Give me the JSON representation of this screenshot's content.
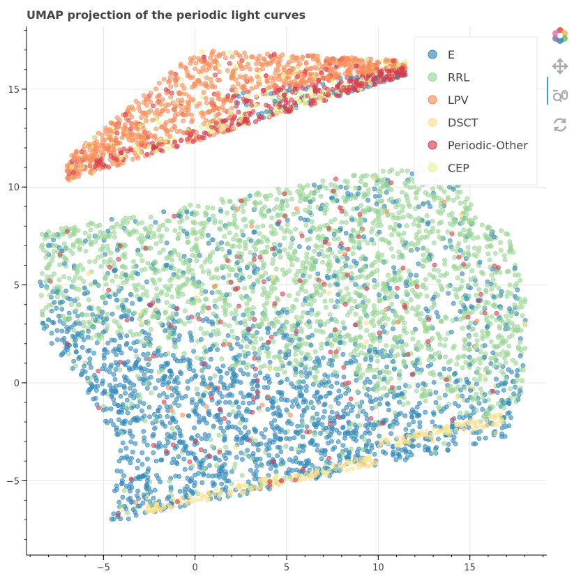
{
  "chart_data": {
    "type": "scatter",
    "title": "UMAP projection of the periodic light curves",
    "xlabel": "",
    "ylabel": "",
    "xlim": [
      -9.2,
      19.2
    ],
    "ylim": [
      -8.8,
      18.2
    ],
    "x_ticks": [
      -5,
      0,
      5,
      10,
      15
    ],
    "y_ticks": [
      -5,
      0,
      5,
      10,
      15
    ],
    "x_tick_labels": [
      "−5",
      "0",
      "5",
      "10",
      "15"
    ],
    "y_tick_labels": [
      "−5",
      "0",
      "5",
      "10",
      "15"
    ],
    "grid": true,
    "legend_position": "top-right",
    "series": [
      {
        "name": "E",
        "color": "#3288bd"
      },
      {
        "name": "RRL",
        "color": "#99d594"
      },
      {
        "name": "LPV",
        "color": "#fc8d59"
      },
      {
        "name": "DSCT",
        "color": "#fee08b"
      },
      {
        "name": "Periodic-Other",
        "color": "#d53e4f"
      },
      {
        "name": "CEP",
        "color": "#e6f598"
      }
    ]
  },
  "toolbar": {
    "tools": [
      {
        "name": "bokeh-logo-icon"
      },
      {
        "name": "pan-tool-icon"
      },
      {
        "name": "wheel-zoom-tool-icon"
      },
      {
        "name": "reset-tool-icon"
      }
    ]
  }
}
